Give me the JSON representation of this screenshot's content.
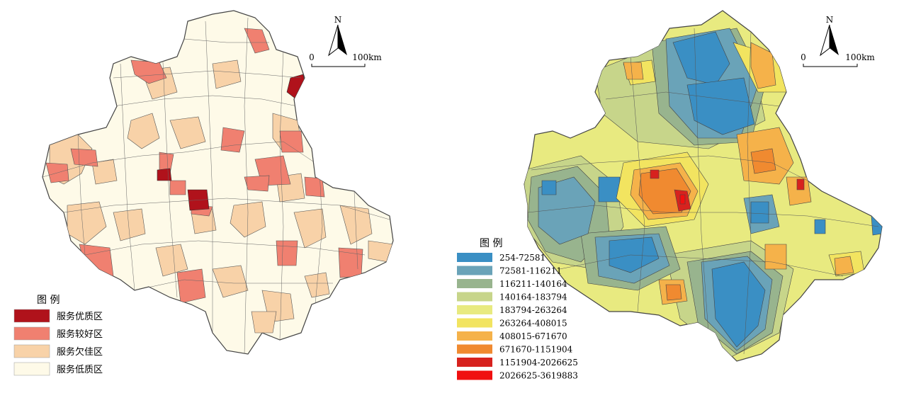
{
  "left_map": {
    "legend": {
      "title": "图 例",
      "items": [
        {
          "label": "服务优质区",
          "color": "#b0121b"
        },
        {
          "label": "服务较好区",
          "color": "#f08070"
        },
        {
          "label": "服务欠佳区",
          "color": "#f8d2a8"
        },
        {
          "label": "服务低质区",
          "color": "#fefae8"
        }
      ]
    },
    "north_label": "N",
    "scale": {
      "zero": "0",
      "end": "100km"
    },
    "border_color": "#555555"
  },
  "right_map": {
    "legend": {
      "title": "图 例",
      "items": [
        {
          "label": "254-72581",
          "color": "#3a8fc4"
        },
        {
          "label": "72581-116211",
          "color": "#6aa3b8"
        },
        {
          "label": "116211-140164",
          "color": "#98b48e"
        },
        {
          "label": "140164-183794",
          "color": "#c7d58a"
        },
        {
          "label": "183794-263264",
          "color": "#e8ea80"
        },
        {
          "label": "263264-408015",
          "color": "#f2e460"
        },
        {
          "label": "408015-671670",
          "color": "#f5b24a"
        },
        {
          "label": "671670-1151904",
          "color": "#f08a30"
        },
        {
          "label": "1151904-2026625",
          "color": "#d7221e"
        },
        {
          "label": "2026625-3619883",
          "color": "#f01010"
        }
      ]
    },
    "north_label": "N",
    "scale": {
      "zero": "0",
      "end": "100km"
    }
  }
}
